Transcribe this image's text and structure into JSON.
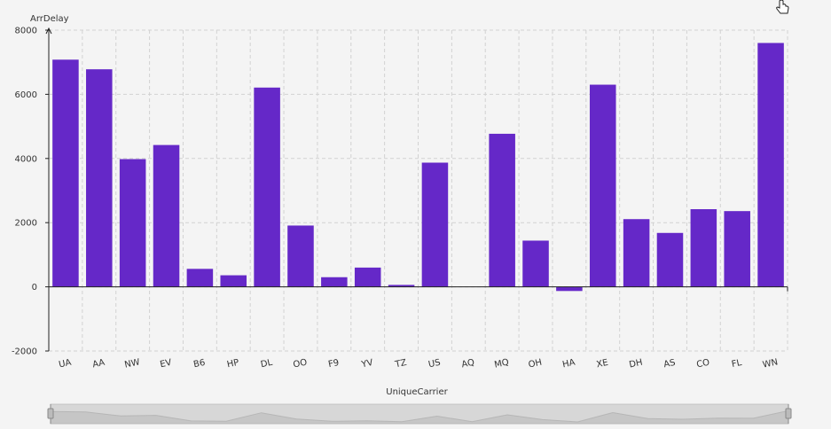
{
  "chart_data": {
    "type": "bar",
    "ylabel": "ArrDelay",
    "xlabel": "UniqueCarrier",
    "categories": [
      "UA",
      "AA",
      "NW",
      "EV",
      "B6",
      "HP",
      "DL",
      "OO",
      "F9",
      "YV",
      "TZ",
      "US",
      "AQ",
      "MQ",
      "OH",
      "HA",
      "XE",
      "DH",
      "AS",
      "CO",
      "FL",
      "WN"
    ],
    "values": [
      7080,
      6780,
      3980,
      4420,
      560,
      360,
      6210,
      1910,
      300,
      600,
      60,
      3870,
      0,
      4770,
      1440,
      -130,
      6300,
      2110,
      1680,
      2420,
      2360,
      7600
    ],
    "yticks": [
      -2000,
      0,
      2000,
      4000,
      6000,
      8000
    ],
    "ylim": [
      -2000,
      8000
    ],
    "grid": true,
    "bar_color": "#6528c8"
  },
  "scrollbar": {
    "preview_values": [
      7080,
      6780,
      3980,
      4420,
      560,
      360,
      6210,
      1910,
      300,
      600,
      60,
      3870,
      0,
      4770,
      1440,
      -130,
      6300,
      2110,
      1680,
      2420,
      2360,
      7600
    ]
  }
}
